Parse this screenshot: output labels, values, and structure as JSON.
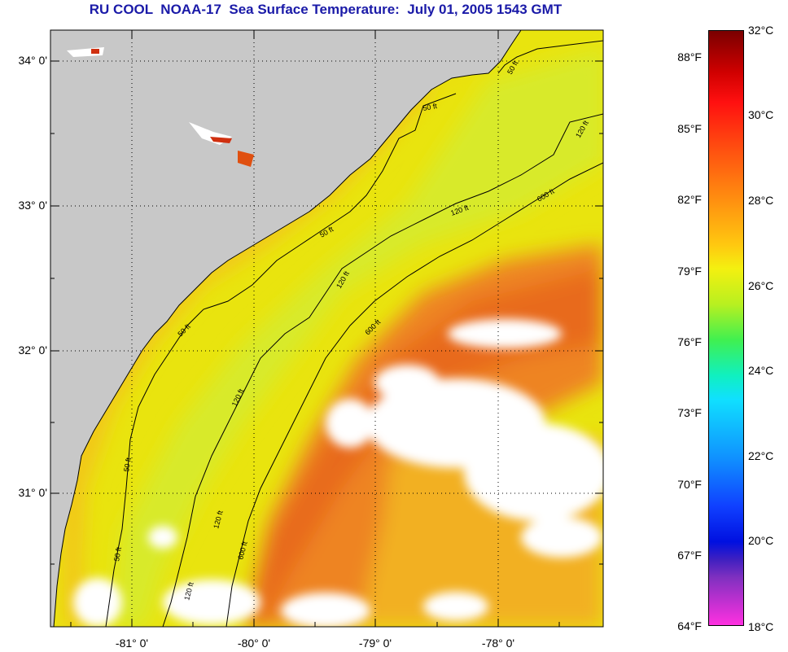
{
  "title": "RU COOL  NOAA-17  Sea Surface Temperature:  July 01, 2005 1543 GMT",
  "axes": {
    "latitudes": [
      "34° 0'",
      "33° 0'",
      "32° 0'",
      "31° 0'"
    ],
    "longitudes": [
      "-81° 0'",
      "-80° 0'",
      "-79° 0'",
      "-78° 0'"
    ]
  },
  "contour_labels": [
    "50 ft",
    "50 ft",
    "50 ft",
    "50 ft",
    "50 ft",
    "50 ft",
    "120 ft",
    "120 ft",
    "120 ft",
    "120 ft",
    "120 ft",
    "120 ft",
    "600 ft",
    "600 ft",
    "600 ft"
  ],
  "colorbar": {
    "fahrenheit": [
      "88°F",
      "85°F",
      "82°F",
      "79°F",
      "76°F",
      "73°F",
      "70°F",
      "67°F",
      "64°F"
    ],
    "celsius": [
      "32°C",
      "30°C",
      "28°C",
      "26°C",
      "24°C",
      "22°C",
      "20°C",
      "18°C"
    ]
  },
  "colors": {
    "title": "#1a1aa8",
    "land": "#c8c8c8",
    "cloud": "#ffffff",
    "warm_stream": "#ee8020",
    "shelf_water": "#f4d808"
  }
}
